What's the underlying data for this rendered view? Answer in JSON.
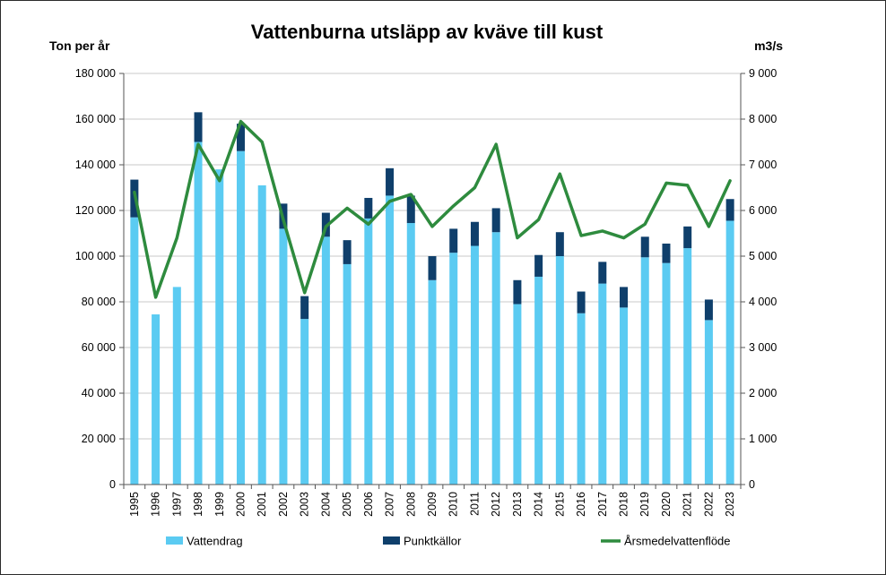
{
  "chart_data": {
    "type": "bar",
    "title": "Vattenburna utsläpp av kväve till kust",
    "ylabel_left": "Ton per år",
    "ylabel_right": "m3/s",
    "ylim_left": [
      0,
      180000
    ],
    "ylim_right": [
      0,
      9000
    ],
    "yticks_left": [
      "0",
      "20 000",
      "40 000",
      "60 000",
      "80 000",
      "100 000",
      "120 000",
      "140 000",
      "160 000",
      "180 000"
    ],
    "yticks_right": [
      "0",
      "1 000",
      "2 000",
      "3 000",
      "4 000",
      "5 000",
      "6 000",
      "7 000",
      "8 000",
      "9 000"
    ],
    "stacked": true,
    "grid": "horizontal",
    "legend_position": "bottom",
    "categories": [
      "1995",
      "1996",
      "1997",
      "1998",
      "1999",
      "2000",
      "2001",
      "2002",
      "2003",
      "2004",
      "2005",
      "2006",
      "2007",
      "2008",
      "2009",
      "2010",
      "2011",
      "2012",
      "2013",
      "2014",
      "2015",
      "2016",
      "2017",
      "2018",
      "2019",
      "2020",
      "2021",
      "2022",
      "2023"
    ],
    "series": [
      {
        "name": "Vattendrag",
        "type": "bar",
        "axis": "left",
        "color": "#5bcbf2",
        "values": [
          117000,
          74500,
          86500,
          150000,
          138000,
          146000,
          131000,
          112000,
          72500,
          108500,
          96500,
          116500,
          126500,
          114500,
          89500,
          101500,
          104500,
          110500,
          79000,
          91000,
          100000,
          75000,
          88000,
          77500,
          99500,
          97000,
          103500,
          72000,
          115500
        ]
      },
      {
        "name": "Punktkällor",
        "type": "bar",
        "axis": "left",
        "color": "#0f3f6b",
        "values": [
          16500,
          0,
          0,
          13000,
          0,
          12000,
          0,
          11000,
          10000,
          10500,
          10500,
          9000,
          12000,
          12000,
          10500,
          10500,
          10500,
          10500,
          10500,
          9500,
          10500,
          9500,
          9500,
          9000,
          9000,
          8500,
          9500,
          9000,
          9500
        ]
      },
      {
        "name": "Årsmedelvattenflöde",
        "type": "line",
        "axis": "right",
        "color": "#2e8b3e",
        "values": [
          6400,
          4100,
          5400,
          7450,
          6650,
          7950,
          7500,
          5800,
          4200,
          5650,
          6050,
          5700,
          6200,
          6350,
          5650,
          6100,
          6500,
          7450,
          5400,
          5800,
          6800,
          5450,
          5550,
          5400,
          5700,
          6600,
          6550,
          5650,
          6650
        ]
      }
    ]
  }
}
